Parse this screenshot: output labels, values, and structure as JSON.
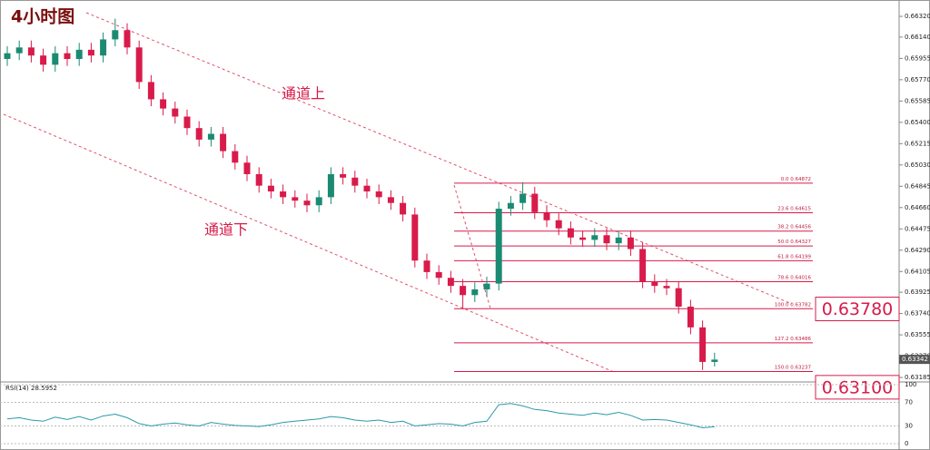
{
  "chart_data": {
    "type": "candlestick",
    "title": "4小时图",
    "annotations": {
      "upper_channel": "通道上",
      "lower_channel": "通道下"
    },
    "ylim": [
      0.63154,
      0.66462
    ],
    "yticks": [
      {
        "value": 0.6632,
        "label": "0.66320"
      },
      {
        "value": 0.6614,
        "label": "0.66140"
      },
      {
        "value": 0.65955,
        "label": "0.65955"
      },
      {
        "value": 0.6577,
        "label": "0.65770"
      },
      {
        "value": 0.65585,
        "label": "0.65585"
      },
      {
        "value": 0.654,
        "label": "0.65400"
      },
      {
        "value": 0.65215,
        "label": "0.65215"
      },
      {
        "value": 0.6503,
        "label": "0.65030"
      },
      {
        "value": 0.64845,
        "label": "0.64845"
      },
      {
        "value": 0.6466,
        "label": "0.64660"
      },
      {
        "value": 0.64475,
        "label": "0.64475"
      },
      {
        "value": 0.6429,
        "label": "0.64290"
      },
      {
        "value": 0.64105,
        "label": "0.64105"
      },
      {
        "value": 0.63925,
        "label": "0.63925"
      },
      {
        "value": 0.6374,
        "label": "0.63740"
      },
      {
        "value": 0.63555,
        "label": "0.63555"
      },
      {
        "value": 0.6337,
        "label": "0.63370"
      },
      {
        "value": 0.63185,
        "label": "0.63185"
      }
    ],
    "up_color": "#1b8a72",
    "down_color": "#d81b4a",
    "open": [
      0.6595,
      0.66,
      0.6605,
      0.6598,
      0.659,
      0.66,
      0.6595,
      0.6603,
      0.6598,
      0.6612,
      0.662,
      0.6605,
      0.6575,
      0.656,
      0.6552,
      0.6545,
      0.6535,
      0.6525,
      0.653,
      0.6515,
      0.6505,
      0.6495,
      0.6485,
      0.648,
      0.6475,
      0.6472,
      0.6468,
      0.6475,
      0.6495,
      0.6492,
      0.6485,
      0.648,
      0.6475,
      0.647,
      0.646,
      0.642,
      0.641,
      0.6405,
      0.6398,
      0.639,
      0.6395,
      0.64,
      0.6465,
      0.647,
      0.6478,
      0.6462,
      0.6455,
      0.6448,
      0.644,
      0.6438,
      0.6442,
      0.6435,
      0.644,
      0.643,
      0.6402,
      0.6398,
      0.6396,
      0.638,
      0.6362,
      0.6332
    ],
    "high": [
      0.6606,
      0.6611,
      0.6611,
      0.6604,
      0.6606,
      0.6606,
      0.6609,
      0.6609,
      0.6618,
      0.663,
      0.6626,
      0.6611,
      0.6581,
      0.6566,
      0.6558,
      0.6551,
      0.6541,
      0.6536,
      0.6536,
      0.6521,
      0.6511,
      0.6501,
      0.6491,
      0.6486,
      0.6481,
      0.6478,
      0.6481,
      0.6501,
      0.6501,
      0.6498,
      0.6491,
      0.6486,
      0.6481,
      0.6476,
      0.6466,
      0.6426,
      0.6416,
      0.6411,
      0.6404,
      0.6401,
      0.6406,
      0.6471,
      0.6476,
      0.6488,
      0.6484,
      0.6468,
      0.6461,
      0.6454,
      0.6446,
      0.6448,
      0.6448,
      0.6446,
      0.6446,
      0.6436,
      0.6408,
      0.6404,
      0.6402,
      0.6386,
      0.6368,
      0.634
    ],
    "low": [
      0.6589,
      0.6594,
      0.6592,
      0.6584,
      0.6584,
      0.6589,
      0.6589,
      0.6592,
      0.6592,
      0.6606,
      0.6599,
      0.6569,
      0.6554,
      0.6546,
      0.6539,
      0.6529,
      0.6519,
      0.6519,
      0.6509,
      0.6499,
      0.6489,
      0.6479,
      0.6474,
      0.6469,
      0.6466,
      0.6462,
      0.6462,
      0.6469,
      0.6486,
      0.6479,
      0.6474,
      0.6469,
      0.6464,
      0.6454,
      0.6414,
      0.6404,
      0.6399,
      0.6392,
      0.6378,
      0.6384,
      0.6389,
      0.6394,
      0.6459,
      0.6464,
      0.6456,
      0.6449,
      0.6442,
      0.6434,
      0.6432,
      0.6432,
      0.6429,
      0.6429,
      0.6424,
      0.6396,
      0.6392,
      0.639,
      0.6374,
      0.6356,
      0.6325,
      0.6328
    ],
    "close": [
      0.66,
      0.6605,
      0.6598,
      0.659,
      0.66,
      0.6595,
      0.6603,
      0.6598,
      0.6612,
      0.662,
      0.6605,
      0.6575,
      0.656,
      0.6552,
      0.6545,
      0.6535,
      0.6525,
      0.653,
      0.6515,
      0.6505,
      0.6495,
      0.6485,
      0.648,
      0.6475,
      0.6472,
      0.6468,
      0.6475,
      0.6495,
      0.6492,
      0.6485,
      0.648,
      0.6475,
      0.647,
      0.646,
      0.642,
      0.641,
      0.6405,
      0.6398,
      0.639,
      0.6395,
      0.64,
      0.6465,
      0.647,
      0.6478,
      0.6462,
      0.6455,
      0.6448,
      0.644,
      0.6438,
      0.6442,
      0.6435,
      0.644,
      0.643,
      0.6402,
      0.6398,
      0.6396,
      0.638,
      0.6362,
      0.6332,
      0.6334
    ],
    "current_price": 0.63342,
    "fib_color": "#d81b4a",
    "fib": [
      {
        "ratio": "0.0",
        "price": 0.64872
      },
      {
        "ratio": "23.6",
        "price": 0.64615
      },
      {
        "ratio": "38.2",
        "price": 0.64456
      },
      {
        "ratio": "50.0",
        "price": 0.64327
      },
      {
        "ratio": "61.8",
        "price": 0.64199
      },
      {
        "ratio": "78.6",
        "price": 0.64016
      },
      {
        "ratio": "100.0",
        "price": 0.63782
      },
      {
        "ratio": "127.2",
        "price": 0.63486
      },
      {
        "ratio": "150.0",
        "price": 0.63237
      }
    ],
    "targets": [
      {
        "value": 0.6378,
        "label": "0.63780"
      },
      {
        "value": 0.631,
        "label": "0.63100"
      }
    ],
    "rsi": {
      "label": "RSI(14)",
      "current": 28.5952,
      "color": "#2a9aa8",
      "ylim": [
        0,
        100
      ],
      "yticks": [
        100,
        70,
        30,
        0
      ],
      "values": [
        42,
        44,
        40,
        38,
        45,
        41,
        46,
        40,
        47,
        50,
        44,
        34,
        30,
        33,
        35,
        32,
        30,
        36,
        33,
        31,
        30,
        29,
        32,
        36,
        38,
        40,
        42,
        46,
        44,
        40,
        38,
        40,
        36,
        38,
        30,
        32,
        34,
        33,
        30,
        36,
        38,
        66,
        68,
        64,
        58,
        56,
        52,
        50,
        48,
        52,
        49,
        53,
        48,
        40,
        41,
        40,
        36,
        32,
        27,
        28.5952
      ]
    }
  }
}
